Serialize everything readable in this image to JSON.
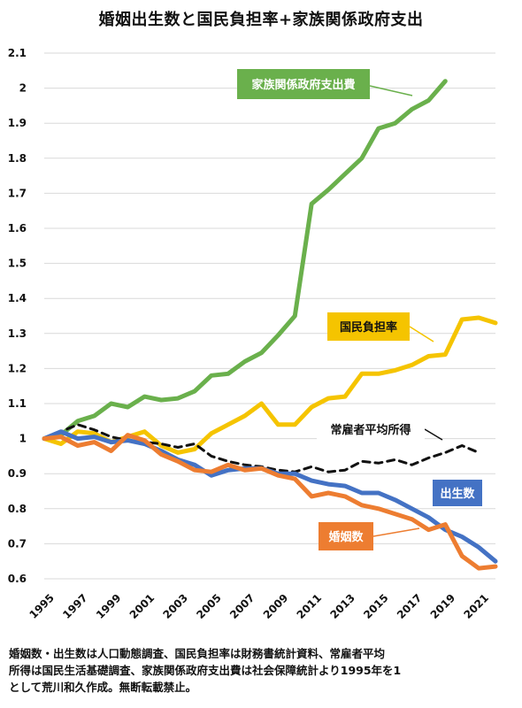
{
  "chart_data": {
    "type": "line",
    "title": "婚姻出生数と国民負担率+家族関係政府支出",
    "xlabel": "",
    "ylabel": "",
    "xlim": [
      1995,
      2022
    ],
    "ylim": [
      0.6,
      2.1
    ],
    "yticks": [
      "0.6",
      "0.7",
      "0.8",
      "0.9",
      "1",
      "1.1",
      "1.2",
      "1.3",
      "1.4",
      "1.5",
      "1.6",
      "1.7",
      "1.8",
      "1.9",
      "2",
      "2.1"
    ],
    "xticks": [
      "1995",
      "1997",
      "1999",
      "2001",
      "2003",
      "2005",
      "2007",
      "2009",
      "2011",
      "2013",
      "2015",
      "2017",
      "2019",
      "2021"
    ],
    "grid": true,
    "legend": "inline labels",
    "series": [
      {
        "name": "家族関係政府支出費",
        "color": "#6ab04c",
        "style": "solid",
        "x": [
          1995,
          1996,
          1997,
          1998,
          1999,
          2000,
          2001,
          2002,
          2003,
          2004,
          2005,
          2006,
          2007,
          2008,
          2009,
          2010,
          2011,
          2012,
          2013,
          2014,
          2015,
          2016,
          2017,
          2018,
          2019
        ],
        "values": [
          1.0,
          1.01,
          1.05,
          1.065,
          1.1,
          1.09,
          1.12,
          1.11,
          1.115,
          1.135,
          1.18,
          1.185,
          1.22,
          1.245,
          1.295,
          1.35,
          1.67,
          1.71,
          1.755,
          1.8,
          1.885,
          1.9,
          1.94,
          1.965,
          2.02
        ]
      },
      {
        "name": "国民負担率",
        "color": "#f5c400",
        "style": "solid",
        "x": [
          1995,
          1996,
          1997,
          1998,
          1999,
          2000,
          2001,
          2002,
          2003,
          2004,
          2005,
          2006,
          2007,
          2008,
          2009,
          2010,
          2011,
          2012,
          2013,
          2014,
          2015,
          2016,
          2017,
          2018,
          2019,
          2020,
          2021,
          2022
        ],
        "values": [
          1.0,
          0.985,
          1.02,
          1.015,
          0.99,
          1.005,
          1.02,
          0.98,
          0.96,
          0.97,
          1.015,
          1.04,
          1.065,
          1.1,
          1.04,
          1.04,
          1.09,
          1.115,
          1.12,
          1.185,
          1.185,
          1.195,
          1.21,
          1.235,
          1.24,
          1.34,
          1.345,
          1.33
        ]
      },
      {
        "name": "常雇者平均所得",
        "color": "#111111",
        "style": "dashed",
        "x": [
          1995,
          1996,
          1997,
          1998,
          1999,
          2000,
          2001,
          2002,
          2003,
          2004,
          2005,
          2006,
          2007,
          2008,
          2009,
          2010,
          2011,
          2012,
          2013,
          2014,
          2015,
          2016,
          2017,
          2018,
          2019,
          2020,
          2021
        ],
        "values": [
          1.0,
          1.02,
          1.04,
          1.025,
          1.005,
          0.995,
          0.99,
          0.985,
          0.975,
          0.985,
          0.95,
          0.935,
          0.925,
          0.92,
          0.91,
          0.905,
          0.92,
          0.905,
          0.91,
          0.935,
          0.93,
          0.94,
          0.925,
          0.945,
          0.96,
          0.98,
          0.96
        ]
      },
      {
        "name": "出生数",
        "color": "#4472c4",
        "style": "solid",
        "x": [
          1995,
          1996,
          1997,
          1998,
          1999,
          2000,
          2001,
          2002,
          2003,
          2004,
          2005,
          2006,
          2007,
          2008,
          2009,
          2010,
          2011,
          2012,
          2013,
          2014,
          2015,
          2016,
          2017,
          2018,
          2019,
          2020,
          2021,
          2022
        ],
        "values": [
          1.0,
          1.02,
          1.0,
          1.005,
          0.99,
          0.995,
          0.985,
          0.965,
          0.94,
          0.925,
          0.895,
          0.91,
          0.915,
          0.915,
          0.9,
          0.9,
          0.88,
          0.87,
          0.865,
          0.845,
          0.845,
          0.825,
          0.8,
          0.775,
          0.74,
          0.72,
          0.69,
          0.65
        ]
      },
      {
        "name": "婚姻数",
        "color": "#ed7d31",
        "style": "solid",
        "x": [
          1995,
          1996,
          1997,
          1998,
          1999,
          2000,
          2001,
          2002,
          2003,
          2004,
          2005,
          2006,
          2007,
          2008,
          2009,
          2010,
          2011,
          2012,
          2013,
          2014,
          2015,
          2016,
          2017,
          2018,
          2019,
          2020,
          2021,
          2022
        ],
        "values": [
          1.0,
          1.005,
          0.98,
          0.99,
          0.965,
          1.01,
          0.995,
          0.955,
          0.935,
          0.91,
          0.905,
          0.925,
          0.91,
          0.915,
          0.895,
          0.885,
          0.835,
          0.845,
          0.835,
          0.81,
          0.8,
          0.785,
          0.77,
          0.74,
          0.755,
          0.665,
          0.63,
          0.635
        ]
      }
    ],
    "labels": [
      {
        "text": "家族関係政府支出費",
        "series": 0,
        "bg": "#6ab04c",
        "fg": "#ffffff"
      },
      {
        "text": "国民負担率",
        "series": 1,
        "bg": "#f5c400",
        "fg": "#111111"
      },
      {
        "text": "常雇者平均所得",
        "series": 2,
        "bg": "#ffffff",
        "fg": "#111111"
      },
      {
        "text": "出生数",
        "series": 3,
        "bg": "#4472c4",
        "fg": "#ffffff"
      },
      {
        "text": "婚姻数",
        "series": 4,
        "bg": "#ed7d31",
        "fg": "#ffffff"
      }
    ]
  },
  "note": {
    "line1": "婚姻数・出生数は人口動態調査、国民負担率は財務書統計資料、常雇者平均",
    "line2": "所得は国民生活基礎調査、家族関係政府支出費は社会保障統計より1995年を1",
    "line3": "として荒川和久作成。無断転載禁止。"
  }
}
